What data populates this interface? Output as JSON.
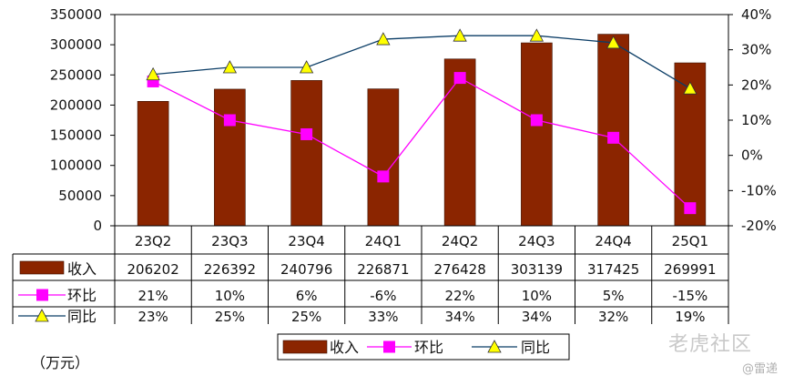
{
  "chart_data": {
    "type": "bar",
    "categories": [
      "23Q2",
      "23Q3",
      "23Q4",
      "24Q1",
      "24Q2",
      "24Q3",
      "24Q4",
      "25Q1"
    ],
    "series": [
      {
        "name": "收入",
        "type": "bar",
        "axis": "left",
        "color": "#8b2500",
        "values": [
          206202,
          226392,
          240796,
          226871,
          276428,
          303139,
          317425,
          269991
        ],
        "table_labels": [
          "206202",
          "226392",
          "240796",
          "226871",
          "276428",
          "303139",
          "317425",
          "269991"
        ]
      },
      {
        "name": "环比",
        "type": "line",
        "axis": "right",
        "color": "#ff00ff",
        "marker": "square",
        "values": [
          21,
          10,
          6,
          -6,
          22,
          10,
          5,
          -15
        ],
        "table_labels": [
          "21%",
          "10%",
          "6%",
          "-6%",
          "22%",
          "10%",
          "5%",
          "-15%"
        ]
      },
      {
        "name": "同比",
        "type": "line",
        "axis": "right",
        "color": "#0b3d66",
        "marker": "triangle",
        "marker_color": "#ffff00",
        "values": [
          23,
          25,
          25,
          33,
          34,
          34,
          32,
          19
        ],
        "table_labels": [
          "23%",
          "25%",
          "25%",
          "33%",
          "34%",
          "34%",
          "32%",
          "19%"
        ]
      }
    ],
    "y_left": {
      "range": [
        0,
        350000
      ],
      "ticks": [
        "0",
        "50000",
        "100000",
        "150000",
        "200000",
        "250000",
        "300000",
        "350000"
      ]
    },
    "y_right": {
      "range": [
        -20,
        40
      ],
      "ticks": [
        "-20%",
        "-10%",
        "0%",
        "10%",
        "20%",
        "30%",
        "40%"
      ]
    },
    "unit_label": "（万元）",
    "legend": {
      "position": "bottom",
      "items": [
        "收入",
        "环比",
        "同比"
      ]
    },
    "grid": true
  },
  "watermark": {
    "main": "老虎社区",
    "sub": "@雷递"
  }
}
